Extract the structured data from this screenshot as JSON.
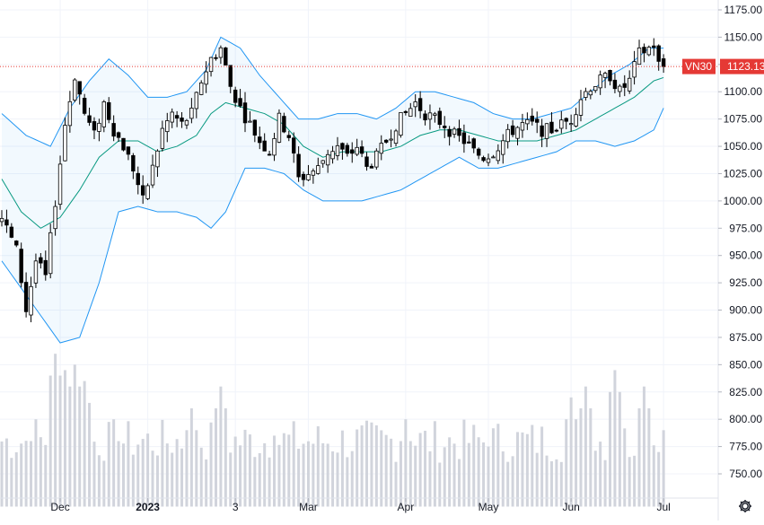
{
  "chart_data": {
    "type": "candlestick",
    "symbol": "VN30",
    "last_price": "1123.13",
    "last_value": 1123.13,
    "y_range": [
      720,
      1180
    ],
    "y_ticks": [
      750,
      775,
      800,
      825,
      850,
      875,
      900,
      925,
      950,
      975,
      1000,
      1025,
      1050,
      1075,
      1100,
      1125,
      1150,
      1175
    ],
    "y_tick_labels": [
      "750.00",
      "775.00",
      "800.00",
      "825.00",
      "850.00",
      "875.00",
      "900.00",
      "925.00",
      "950.00",
      "975.00",
      "1000.00",
      "1025.00",
      "1050.00",
      "1075.00",
      "1100.00",
      "1125.00",
      "1150.00",
      "1175.00"
    ],
    "x_ticks": [
      {
        "label": "Dec",
        "index": 12,
        "bold": false
      },
      {
        "label": "2023",
        "index": 30,
        "bold": true
      },
      {
        "label": "3",
        "index": 48,
        "bold": false
      },
      {
        "label": "Mar",
        "index": 63,
        "bold": false
      },
      {
        "label": "Apr",
        "index": 83,
        "bold": false
      },
      {
        "label": "May",
        "index": 100,
        "bold": false
      },
      {
        "label": "Jun",
        "index": 117,
        "bold": false
      },
      {
        "label": "Jul",
        "index": 136,
        "bold": false
      }
    ],
    "close_anchors": [
      [
        0,
        985
      ],
      [
        3,
        955
      ],
      [
        5,
        900
      ],
      [
        7,
        945
      ],
      [
        9,
        930
      ],
      [
        11,
        1000
      ],
      [
        13,
        1070
      ],
      [
        15,
        1115
      ],
      [
        17,
        1080
      ],
      [
        19,
        1060
      ],
      [
        21,
        1090
      ],
      [
        23,
        1065
      ],
      [
        25,
        1050
      ],
      [
        27,
        1030
      ],
      [
        29,
        1000
      ],
      [
        31,
        1030
      ],
      [
        33,
        1065
      ],
      [
        35,
        1080
      ],
      [
        37,
        1070
      ],
      [
        39,
        1080
      ],
      [
        41,
        1110
      ],
      [
        43,
        1130
      ],
      [
        45,
        1140
      ],
      [
        47,
        1105
      ],
      [
        49,
        1085
      ],
      [
        51,
        1070
      ],
      [
        53,
        1055
      ],
      [
        55,
        1045
      ],
      [
        57,
        1075
      ],
      [
        59,
        1060
      ],
      [
        61,
        1020
      ],
      [
        63,
        1025
      ],
      [
        65,
        1030
      ],
      [
        67,
        1045
      ],
      [
        69,
        1050
      ],
      [
        71,
        1040
      ],
      [
        73,
        1050
      ],
      [
        75,
        1030
      ],
      [
        77,
        1040
      ],
      [
        79,
        1055
      ],
      [
        81,
        1070
      ],
      [
        83,
        1080
      ],
      [
        85,
        1090
      ],
      [
        87,
        1080
      ],
      [
        89,
        1075
      ],
      [
        91,
        1070
      ],
      [
        93,
        1060
      ],
      [
        95,
        1055
      ],
      [
        97,
        1045
      ],
      [
        99,
        1040
      ],
      [
        101,
        1045
      ],
      [
        103,
        1055
      ],
      [
        105,
        1065
      ],
      [
        107,
        1070
      ],
      [
        109,
        1070
      ],
      [
        111,
        1065
      ],
      [
        113,
        1065
      ],
      [
        115,
        1070
      ],
      [
        117,
        1075
      ],
      [
        119,
        1095
      ],
      [
        121,
        1105
      ],
      [
        123,
        1110
      ],
      [
        125,
        1115
      ],
      [
        127,
        1100
      ],
      [
        129,
        1110
      ],
      [
        131,
        1135
      ],
      [
        133,
        1140
      ],
      [
        134,
        1143
      ],
      [
        135,
        1125
      ],
      [
        136,
        1123
      ]
    ],
    "candles": {
      "count": 137,
      "note": "daily OHLC for VN30, Nov 2022 - Jul 2023; bodies approximated from the close path"
    },
    "bollinger_bands": {
      "period": 20,
      "upper": [
        [
          0,
          1080
        ],
        [
          5,
          1060
        ],
        [
          10,
          1050
        ],
        [
          14,
          1085
        ],
        [
          18,
          1110
        ],
        [
          22,
          1130
        ],
        [
          26,
          1115
        ],
        [
          30,
          1095
        ],
        [
          34,
          1095
        ],
        [
          38,
          1100
        ],
        [
          42,
          1120
        ],
        [
          45,
          1150
        ],
        [
          49,
          1140
        ],
        [
          53,
          1115
        ],
        [
          57,
          1095
        ],
        [
          61,
          1075
        ],
        [
          65,
          1075
        ],
        [
          69,
          1080
        ],
        [
          73,
          1080
        ],
        [
          77,
          1075
        ],
        [
          81,
          1085
        ],
        [
          85,
          1100
        ],
        [
          89,
          1100
        ],
        [
          93,
          1095
        ],
        [
          97,
          1090
        ],
        [
          101,
          1080
        ],
        [
          105,
          1075
        ],
        [
          109,
          1075
        ],
        [
          113,
          1080
        ],
        [
          117,
          1085
        ],
        [
          121,
          1100
        ],
        [
          125,
          1115
        ],
        [
          129,
          1125
        ],
        [
          133,
          1140
        ],
        [
          136,
          1140
        ]
      ],
      "middle": [
        [
          0,
          1020
        ],
        [
          4,
          990
        ],
        [
          8,
          975
        ],
        [
          12,
          985
        ],
        [
          16,
          1010
        ],
        [
          20,
          1040
        ],
        [
          24,
          1055
        ],
        [
          28,
          1055
        ],
        [
          32,
          1045
        ],
        [
          36,
          1050
        ],
        [
          40,
          1060
        ],
        [
          43,
          1080
        ],
        [
          46,
          1090
        ],
        [
          50,
          1085
        ],
        [
          54,
          1080
        ],
        [
          58,
          1070
        ],
        [
          62,
          1050
        ],
        [
          66,
          1040
        ],
        [
          70,
          1045
        ],
        [
          74,
          1045
        ],
        [
          78,
          1045
        ],
        [
          82,
          1050
        ],
        [
          86,
          1060
        ],
        [
          90,
          1065
        ],
        [
          94,
          1065
        ],
        [
          98,
          1060
        ],
        [
          102,
          1055
        ],
        [
          106,
          1055
        ],
        [
          110,
          1055
        ],
        [
          114,
          1060
        ],
        [
          118,
          1065
        ],
        [
          122,
          1075
        ],
        [
          126,
          1085
        ],
        [
          130,
          1095
        ],
        [
          134,
          1110
        ],
        [
          136,
          1113
        ]
      ],
      "lower": [
        [
          0,
          945
        ],
        [
          4,
          920
        ],
        [
          8,
          895
        ],
        [
          12,
          870
        ],
        [
          16,
          875
        ],
        [
          20,
          925
        ],
        [
          24,
          990
        ],
        [
          28,
          995
        ],
        [
          32,
          990
        ],
        [
          36,
          990
        ],
        [
          40,
          985
        ],
        [
          43,
          975
        ],
        [
          46,
          990
        ],
        [
          50,
          1030
        ],
        [
          54,
          1030
        ],
        [
          58,
          1025
        ],
        [
          62,
          1010
        ],
        [
          66,
          1000
        ],
        [
          70,
          1000
        ],
        [
          74,
          1000
        ],
        [
          78,
          1005
        ],
        [
          82,
          1010
        ],
        [
          86,
          1020
        ],
        [
          90,
          1030
        ],
        [
          94,
          1040
        ],
        [
          98,
          1030
        ],
        [
          102,
          1030
        ],
        [
          106,
          1035
        ],
        [
          110,
          1040
        ],
        [
          114,
          1045
        ],
        [
          118,
          1055
        ],
        [
          122,
          1055
        ],
        [
          126,
          1050
        ],
        [
          130,
          1055
        ],
        [
          134,
          1065
        ],
        [
          136,
          1085
        ]
      ]
    },
    "volume": {
      "note": "relative volume bars, estimated, same index as candles",
      "peaks": [
        [
          7,
          800
        ],
        [
          11,
          860
        ],
        [
          13,
          845
        ],
        [
          15,
          850
        ],
        [
          17,
          835
        ],
        [
          23,
          800
        ],
        [
          39,
          810
        ],
        [
          45,
          830
        ],
        [
          56,
          785
        ],
        [
          75,
          775
        ],
        [
          83,
          800
        ],
        [
          100,
          775
        ],
        [
          117,
          820
        ],
        [
          120,
          830
        ],
        [
          126,
          845
        ],
        [
          132,
          830
        ],
        [
          136,
          790
        ]
      ]
    }
  },
  "settings_icon": "gear-icon"
}
